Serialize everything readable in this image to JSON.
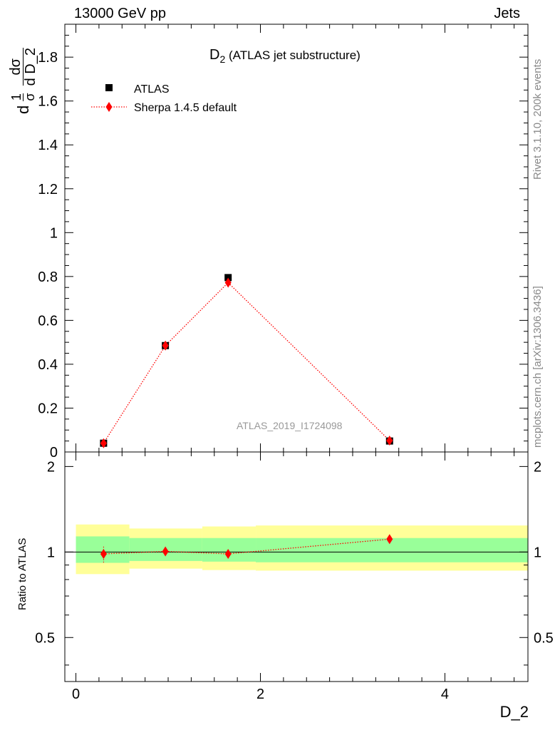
{
  "header": {
    "left": "13000 GeV pp",
    "right": "Jets"
  },
  "side_labels": {
    "top": "Rivet 3.1.10,  200k events",
    "bottom": "mcplots.cern.ch [arXiv:1306.3436]"
  },
  "chart_data": [
    {
      "type": "scatter",
      "title_main": "D",
      "title_sub": "2",
      "title_rest": " (ATLAS jet substructure)",
      "ylabel": "1/σ dσ/d D_2",
      "ylabel_parts": {
        "d1": "d",
        "one": "1",
        "sigma_den": "σ",
        "d2": "d",
        "dsigma": "dσ",
        "dD2": "d D_2"
      },
      "xlabel": "D_2",
      "watermark": "ATLAS_2019_I1724098",
      "xlim": [
        -0.12,
        4.9
      ],
      "ylim": [
        0,
        1.95
      ],
      "yticks": [
        0,
        0.2,
        0.4,
        0.6,
        0.8,
        1,
        1.2,
        1.4,
        1.6,
        1.8
      ],
      "ytick_labels": [
        "0",
        "0.2",
        "0.4",
        "0.6",
        "0.8",
        "1",
        "1.2",
        "1.4",
        "1.6",
        "1.8"
      ],
      "legend_position": "top-left",
      "series": [
        {
          "name": "ATLAS",
          "marker": "square",
          "color": "#000000",
          "x": [
            0.3,
            0.97,
            1.65,
            3.4
          ],
          "y": [
            0.04,
            0.485,
            0.795,
            0.05
          ]
        },
        {
          "name": "Sherpa 1.4.5 default",
          "marker": "diamond",
          "line": "dotted",
          "color": "#ff0000",
          "x": [
            0.3,
            0.97,
            1.65,
            3.4
          ],
          "y": [
            0.04,
            0.485,
            0.772,
            0.052
          ]
        }
      ]
    },
    {
      "type": "scatter",
      "ylabel": "Ratio to ATLAS",
      "xlabel": "D_2",
      "xlim": [
        -0.12,
        4.9
      ],
      "ylim": [
        0.35,
        2.25
      ],
      "yticks": [
        0.5,
        1,
        2
      ],
      "ytick_labels": [
        "0.5",
        "1",
        "2"
      ],
      "xticks": [
        0,
        2,
        4
      ],
      "xtick_labels": [
        "0",
        "2",
        "4"
      ],
      "bands": {
        "edges": [
          0,
          0.58,
          1.37,
          1.95,
          4.9
        ],
        "inner_color": "#99ff99",
        "outer_color": "#ffff99",
        "inner_low": [
          0.916,
          0.93,
          0.925,
          0.92
        ],
        "inner_high": [
          1.135,
          1.12,
          1.12,
          1.12
        ],
        "outer_low": [
          0.836,
          0.874,
          0.864,
          0.86
        ],
        "outer_high": [
          1.25,
          1.21,
          1.23,
          1.24
        ]
      },
      "series": [
        {
          "name": "Sherpa 1.4.5 default",
          "marker": "diamond",
          "line": "dotted",
          "color": "#ff0000",
          "x": [
            0.3,
            0.97,
            1.65,
            3.4
          ],
          "y": [
            0.985,
            1.005,
            0.985,
            1.11
          ],
          "err_low": [
            0.07,
            0.01,
            0.01,
            0.03
          ],
          "err_high": [
            0.06,
            0.01,
            0.01,
            0.03
          ]
        }
      ]
    }
  ]
}
